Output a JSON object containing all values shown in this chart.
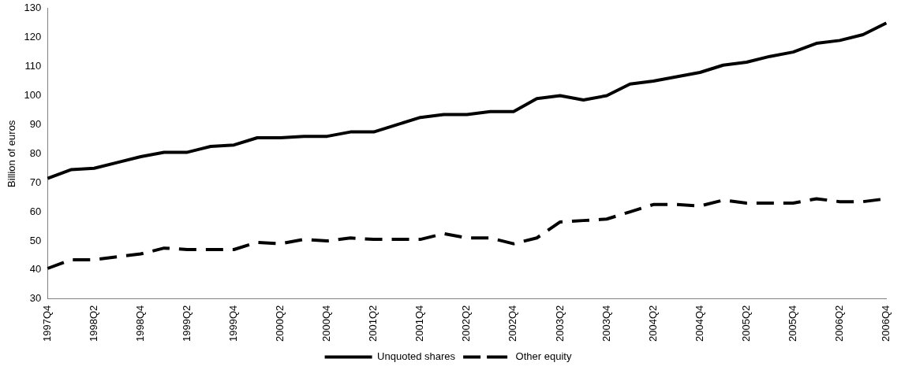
{
  "chart_data": {
    "type": "line",
    "ylabel": "Billion of euros",
    "categories": [
      "1997Q4",
      null,
      "1998Q2",
      null,
      "1998Q4",
      null,
      "1999Q2",
      null,
      "1999Q4",
      null,
      "2000Q2",
      null,
      "2000Q4",
      null,
      "2001Q2",
      null,
      "2001Q4",
      null,
      "2002Q2",
      null,
      "2002Q4",
      null,
      "2003Q2",
      null,
      "2003Q4",
      null,
      "2004Q2",
      null,
      "2004Q4",
      null,
      "2005Q2",
      null,
      "2005Q4",
      null,
      "2006Q2",
      null,
      "2006Q4"
    ],
    "series": [
      {
        "name": "Unquoted shares",
        "color": "#000000",
        "line_style": "solid",
        "values": [
          71.5,
          74.5,
          75,
          77,
          79,
          80.5,
          80.5,
          82.5,
          83,
          85.5,
          85.5,
          86,
          86,
          87.5,
          87.5,
          90,
          92.5,
          93.5,
          93.5,
          94.5,
          94.5,
          99,
          100,
          98.5,
          100,
          104,
          105,
          106.5,
          108,
          110.5,
          111.5,
          113.5,
          115,
          118,
          119,
          121,
          125
        ]
      },
      {
        "name": "Other equity",
        "color": "#000000",
        "line_style": "dashed",
        "values": [
          40.5,
          43.5,
          43.5,
          44.5,
          45.5,
          47.5,
          47,
          47,
          47,
          49.5,
          49,
          50.5,
          50,
          51,
          50.5,
          50.5,
          50.5,
          52.5,
          51,
          51,
          49,
          51,
          56.5,
          57,
          57.5,
          60,
          62.5,
          62.5,
          62,
          64,
          63,
          63,
          63,
          64.5,
          63.5,
          63.5,
          64.5
        ]
      }
    ],
    "ylim": [
      30,
      130
    ],
    "yticks": [
      30,
      40,
      50,
      60,
      70,
      80,
      90,
      100,
      110,
      120,
      130
    ],
    "grid": false,
    "legend": "bottom",
    "marker": "none"
  }
}
